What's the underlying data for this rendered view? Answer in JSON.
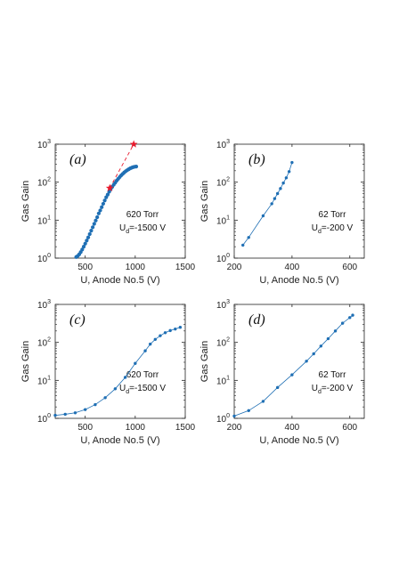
{
  "colors": {
    "series": "#1f6fb4",
    "star": "#e8192c",
    "axis": "#222222"
  },
  "chart_data": [
    {
      "type": "line",
      "panel_label": "(a)",
      "xlabel": "U, Anode No.5 (V)",
      "ylabel": "Gas Gain",
      "xlim": [
        200,
        1500
      ],
      "ylim": [
        1,
        1000
      ],
      "yscale": "log",
      "xticks": [
        500,
        1000,
        1500
      ],
      "yticks": [
        {
          "value": 1,
          "base": "10",
          "exp": "0"
        },
        {
          "value": 10,
          "base": "10",
          "exp": "1"
        },
        {
          "value": 100,
          "base": "10",
          "exp": "2"
        },
        {
          "value": 1000,
          "base": "10",
          "exp": "3"
        }
      ],
      "annotations": [
        {
          "text": "620 Torr"
        },
        {
          "text": "U",
          "sub": "d",
          "suffix": "=-1500 V"
        }
      ],
      "series": [
        {
          "style": "dots",
          "x": [
            410,
            425,
            440,
            455,
            470,
            485,
            500,
            515,
            530,
            545,
            560,
            575,
            590,
            605,
            620,
            635,
            650,
            665,
            680,
            695,
            710,
            725,
            740,
            755,
            770,
            785,
            800,
            815,
            830,
            845,
            860,
            875,
            890,
            905,
            920,
            935,
            950,
            965,
            980,
            995,
            1010
          ],
          "y": [
            1.07,
            1.14,
            1.26,
            1.44,
            1.68,
            2.0,
            2.4,
            2.9,
            3.5,
            4.3,
            5.3,
            6.5,
            8.0,
            9.8,
            12,
            15,
            18,
            22,
            27,
            33,
            40,
            47,
            56,
            65,
            75,
            86,
            97,
            110,
            123,
            137,
            151,
            165,
            180,
            194,
            207,
            219,
            231,
            241,
            249,
            255,
            258
          ]
        },
        {
          "style": "star-dashed",
          "x": [
            745,
            985
          ],
          "y": [
            70,
            1000
          ]
        }
      ]
    },
    {
      "type": "line",
      "panel_label": "(b)",
      "xlabel": "U, Anode No.5 (V)",
      "ylabel": "Gas Gain",
      "xlim": [
        200,
        650
      ],
      "ylim": [
        1,
        1000
      ],
      "yscale": "log",
      "xticks": [
        200,
        400,
        600
      ],
      "yticks": [
        {
          "value": 1,
          "base": "10",
          "exp": "0"
        },
        {
          "value": 10,
          "base": "10",
          "exp": "1"
        },
        {
          "value": 100,
          "base": "10",
          "exp": "2"
        },
        {
          "value": 1000,
          "base": "10",
          "exp": "3"
        }
      ],
      "annotations": [
        {
          "text": "62 Torr"
        },
        {
          "text": "U",
          "sub": "d",
          "suffix": "=-200 V"
        }
      ],
      "series": [
        {
          "style": "line-dots",
          "x": [
            230,
            250,
            300,
            330,
            340,
            350,
            360,
            370,
            380,
            390,
            400
          ],
          "y": [
            2.2,
            3.5,
            13,
            27,
            37,
            50,
            68,
            95,
            130,
            190,
            330
          ]
        }
      ]
    },
    {
      "type": "line",
      "panel_label": "(c)",
      "xlabel": "U, Anode No.5 (V)",
      "ylabel": "Gas Gain",
      "xlim": [
        200,
        1500
      ],
      "ylim": [
        1,
        1000
      ],
      "yscale": "log",
      "xticks": [
        500,
        1000,
        1500
      ],
      "yticks": [
        {
          "value": 1,
          "base": "10",
          "exp": "0"
        },
        {
          "value": 10,
          "base": "10",
          "exp": "1"
        },
        {
          "value": 100,
          "base": "10",
          "exp": "2"
        },
        {
          "value": 1000,
          "base": "10",
          "exp": "3"
        }
      ],
      "annotations": [
        {
          "text": "620 Torr"
        },
        {
          "text": "U",
          "sub": "d",
          "suffix": "=-1500 V"
        }
      ],
      "series": [
        {
          "style": "line-dots",
          "x": [
            200,
            300,
            400,
            500,
            600,
            700,
            800,
            900,
            1000,
            1100,
            1150,
            1200,
            1250,
            1300,
            1350,
            1400,
            1450
          ],
          "y": [
            1.2,
            1.28,
            1.4,
            1.7,
            2.3,
            3.5,
            6,
            12,
            28,
            60,
            90,
            120,
            150,
            180,
            205,
            225,
            250
          ]
        }
      ]
    },
    {
      "type": "line",
      "panel_label": "(d)",
      "xlabel": "U, Anode No.5 (V)",
      "ylabel": "Gas Gain",
      "xlim": [
        200,
        650
      ],
      "ylim": [
        1,
        1000
      ],
      "yscale": "log",
      "xticks": [
        200,
        400,
        600
      ],
      "yticks": [
        {
          "value": 1,
          "base": "10",
          "exp": "0"
        },
        {
          "value": 10,
          "base": "10",
          "exp": "1"
        },
        {
          "value": 100,
          "base": "10",
          "exp": "2"
        },
        {
          "value": 1000,
          "base": "10",
          "exp": "3"
        }
      ],
      "annotations": [
        {
          "text": "62 Torr"
        },
        {
          "text": "U",
          "sub": "d",
          "suffix": "=-200 V"
        }
      ],
      "series": [
        {
          "style": "line-dots",
          "x": [
            200,
            250,
            300,
            350,
            400,
            450,
            475,
            500,
            525,
            550,
            575,
            600,
            610
          ],
          "y": [
            1.15,
            1.6,
            2.8,
            6.5,
            14,
            32,
            50,
            80,
            125,
            200,
            320,
            450,
            520
          ]
        }
      ]
    }
  ]
}
